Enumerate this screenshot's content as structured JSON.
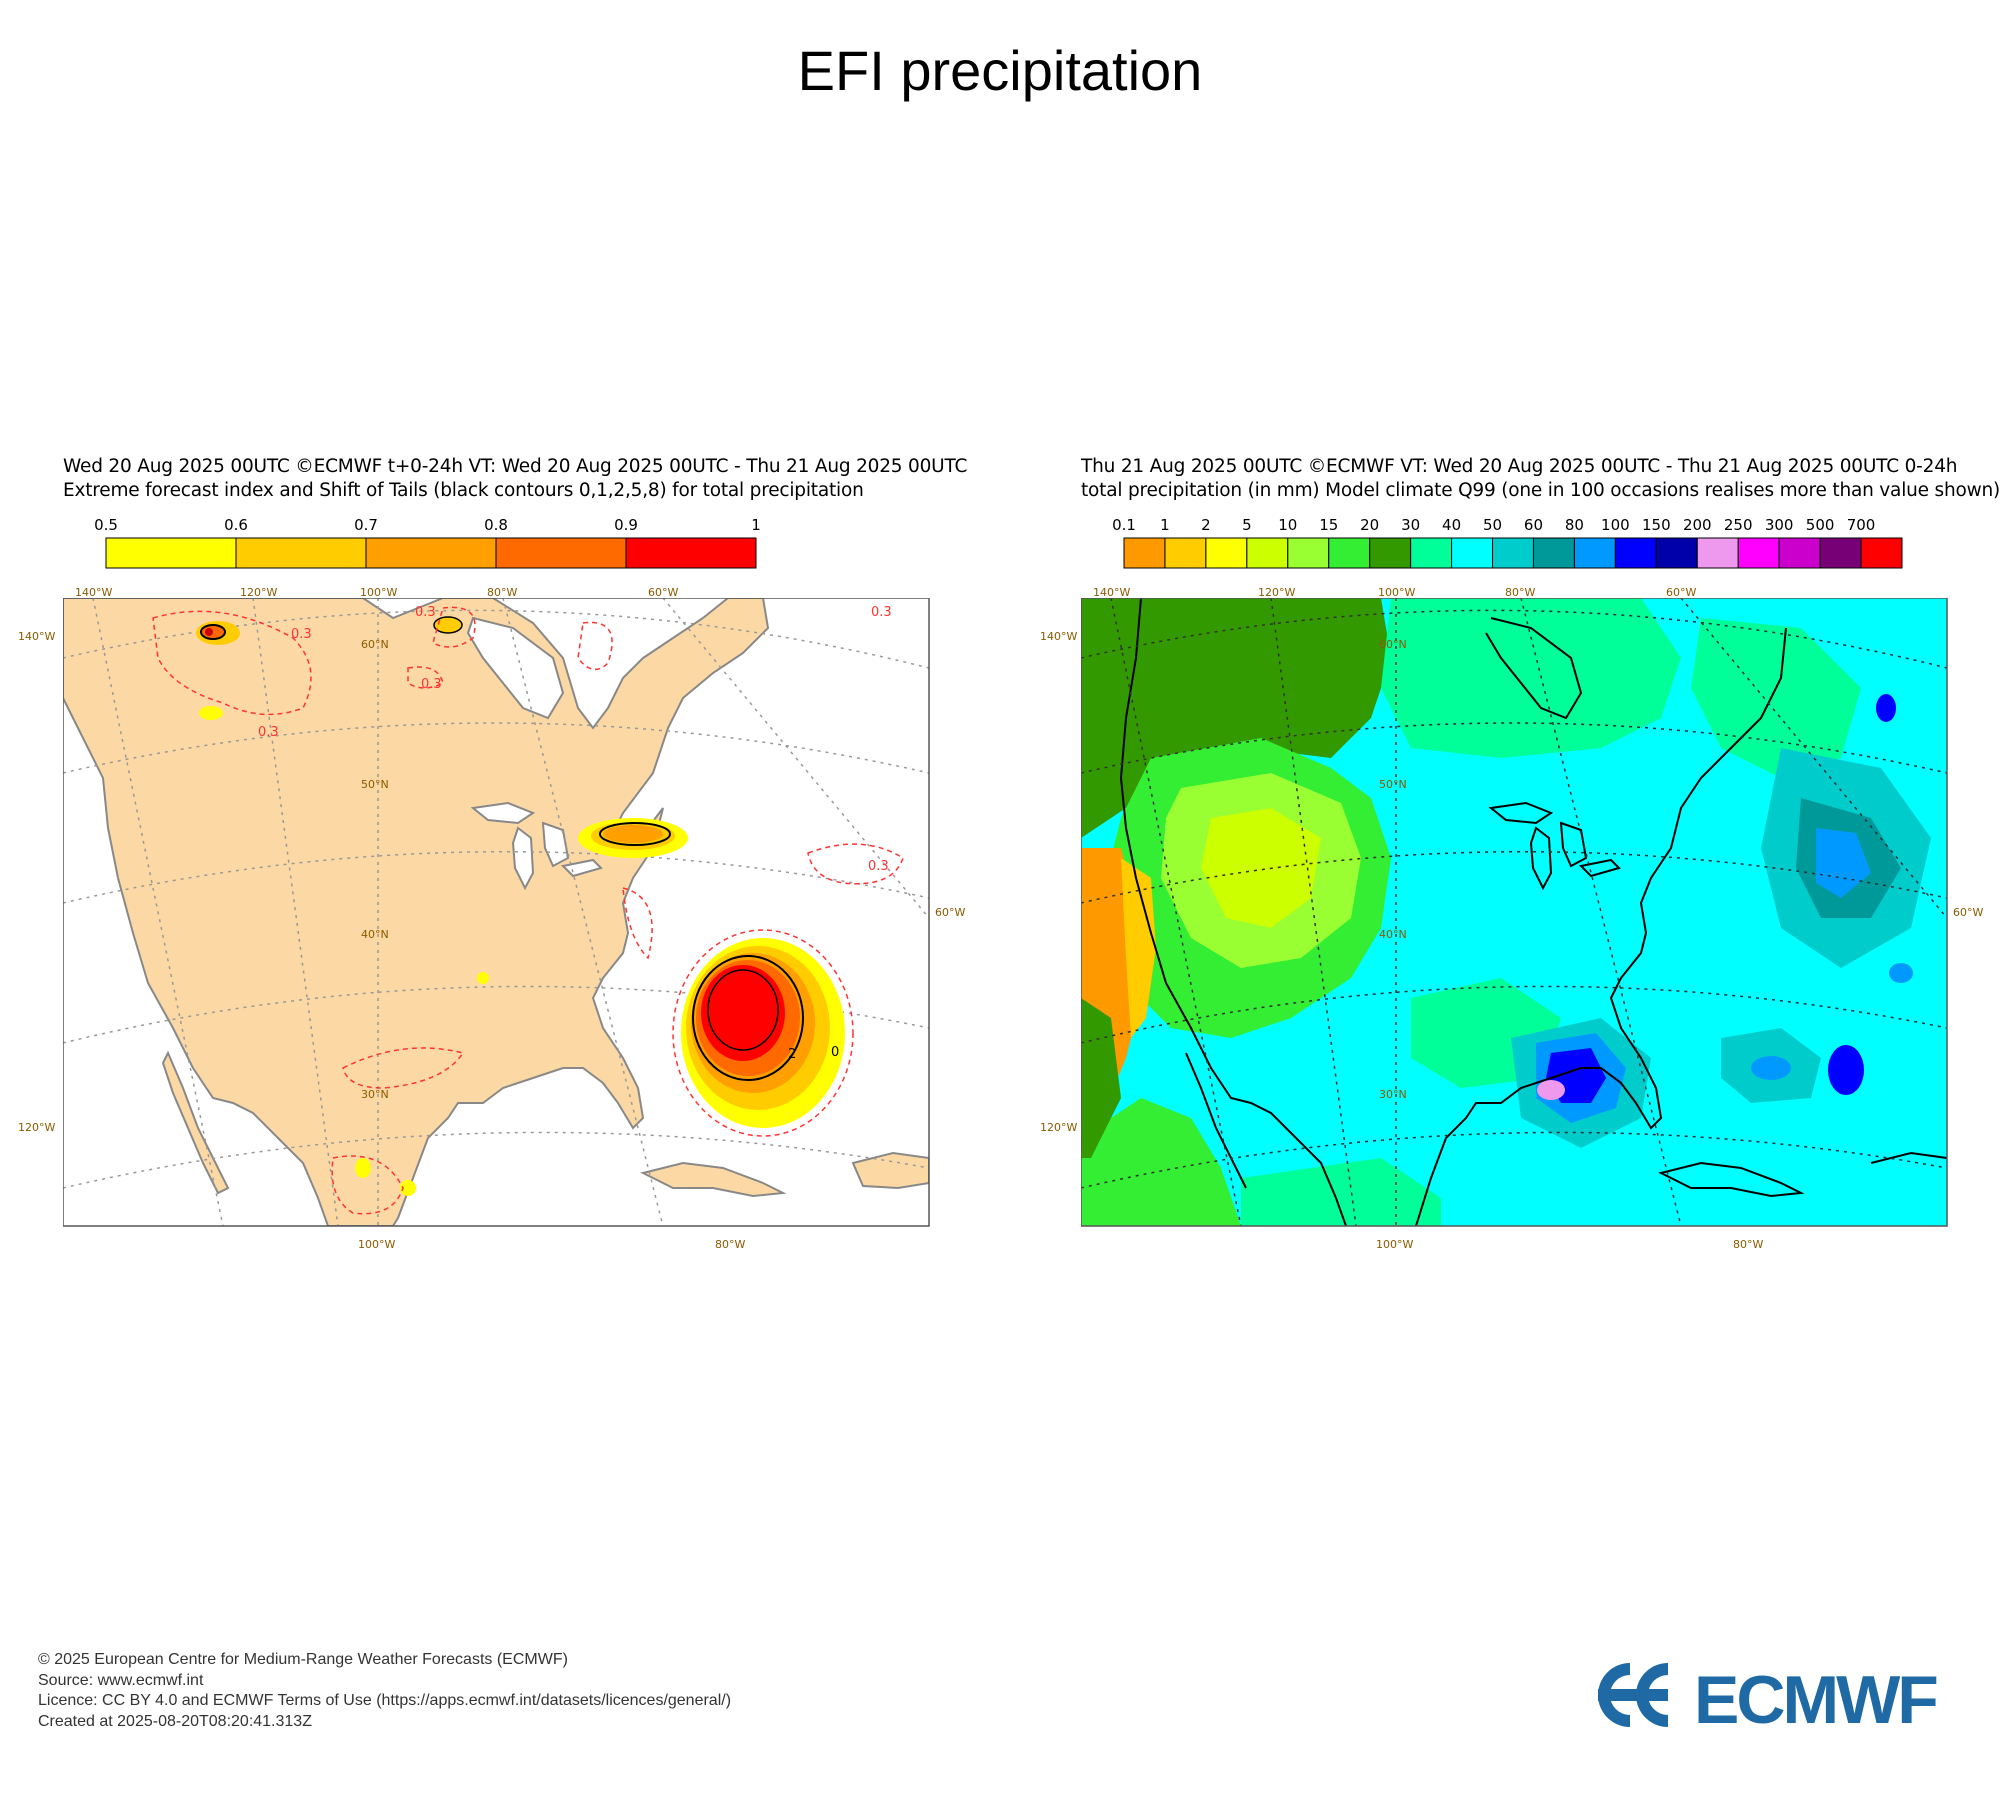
{
  "page": {
    "title": "EFI precipitation"
  },
  "panels": [
    {
      "header_line1": "Wed 20 Aug 2025 00UTC ©ECMWF t+0-24h  VT: Wed 20 Aug 2025 00UTC - Thu 21 Aug 2025 00UTC",
      "header_line2": "Extreme forecast index and Shift of Tails (black contours 0,1,2,5,8) for total precipitation",
      "colorbar": {
        "ticks": [
          "0.5",
          "0.6",
          "0.7",
          "0.8",
          "0.9",
          "1"
        ],
        "colors": [
          "#ffff00",
          "#ffcc00",
          "#ff9f00",
          "#ff6a00",
          "#ff0000"
        ]
      },
      "top_lon_labels": [
        "140°W",
        "120°W",
        "100°W",
        "80°W",
        "60°W"
      ],
      "bottom_lon_labels": [
        "100°W",
        "80°W"
      ],
      "left_labels": [
        "140°W",
        "120°W"
      ],
      "right_labels": [
        "60°W"
      ],
      "lat_labels": [
        "60°N",
        "50°N",
        "40°N",
        "30°N"
      ],
      "contour_labels": [
        "0.3",
        "0.3",
        "0.3",
        "0.3",
        "0.3",
        "0.3",
        "2",
        "0"
      ],
      "land_color": "#fcd9a4",
      "ocean_color": "#ffffff"
    },
    {
      "header_line1": "Thu 21 Aug 2025 00UTC ©ECMWF VT: Wed 20 Aug 2025 00UTC - Thu 21 Aug 2025 00UTC   0-24h",
      "header_line2": "total precipitation (in mm)  Model climate Q99 (one in 100 occasions realises more than value shown)",
      "colorbar": {
        "ticks": [
          "0.1",
          "1",
          "2",
          "5",
          "10",
          "15",
          "20",
          "30",
          "40",
          "50",
          "60",
          "80",
          "100",
          "150",
          "200",
          "250",
          "300",
          "500",
          "700"
        ],
        "colors": [
          "#ff9900",
          "#ffcc00",
          "#ffff00",
          "#ccff00",
          "#99ff33",
          "#33ee33",
          "#339900",
          "#00ff99",
          "#00ffff",
          "#00cccc",
          "#009999",
          "#0099ff",
          "#0000ff",
          "#0000aa",
          "#ee99ee",
          "#ff00ff",
          "#cc00cc",
          "#770077",
          "#ff0000"
        ]
      },
      "top_lon_labels": [
        "140°W",
        "120°W",
        "100°W",
        "80°W",
        "60°W"
      ],
      "bottom_lon_labels": [
        "100°W",
        "80°W"
      ],
      "left_labels": [
        "140°W",
        "120°W"
      ],
      "right_labels": [
        "60°W"
      ],
      "lat_labels": [
        "60°N",
        "50°N",
        "40°N",
        "30°N"
      ]
    }
  ],
  "footer": {
    "line1": "© 2025 European Centre for Medium-Range Weather Forecasts (ECMWF)",
    "line2": "Source: www.ecmwf.int",
    "line3": "Licence: CC BY 4.0 and ECMWF Terms of Use (https://apps.ecmwf.int/datasets/licences/general/)",
    "line4": "Created at 2025-08-20T08:20:41.313Z"
  },
  "logo": {
    "text": "ECMWF",
    "color": "#1f6aa5"
  }
}
